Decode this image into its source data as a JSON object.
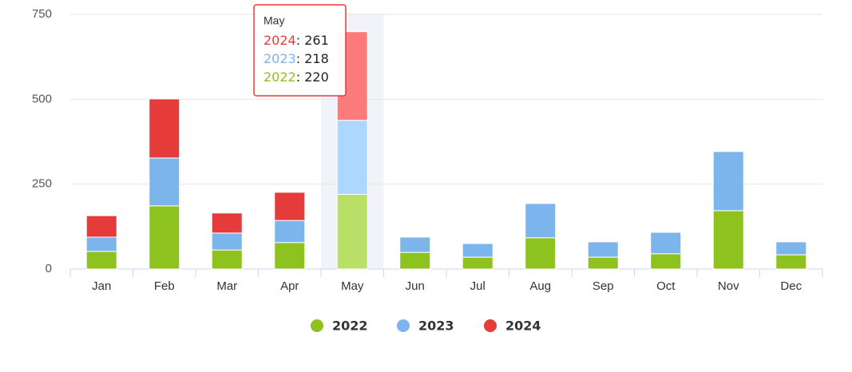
{
  "chart_data": {
    "type": "stacked_bar",
    "categories": [
      "Jan",
      "Feb",
      "Mar",
      "Apr",
      "May",
      "Jun",
      "Jul",
      "Aug",
      "Sep",
      "Oct",
      "Nov",
      "Dec"
    ],
    "series": [
      {
        "name": "2022",
        "color": "#8dc21f",
        "values": [
          52,
          186,
          56,
          78,
          220,
          49,
          35,
          92,
          35,
          45,
          172,
          42
        ]
      },
      {
        "name": "2023",
        "color": "#7cb5ec",
        "values": [
          42,
          141,
          50,
          65,
          218,
          45,
          40,
          101,
          45,
          63,
          174,
          38
        ]
      },
      {
        "name": "2024",
        "color": "#e63b3b",
        "values": [
          63,
          174,
          59,
          83,
          261,
          null,
          null,
          null,
          null,
          null,
          null,
          null
        ]
      }
    ],
    "ylim": [
      0,
      750
    ],
    "yticks": [
      0,
      250,
      500,
      750
    ],
    "grid": true,
    "legend": "bottom",
    "tooltip": {
      "title": "May"
    }
  }
}
